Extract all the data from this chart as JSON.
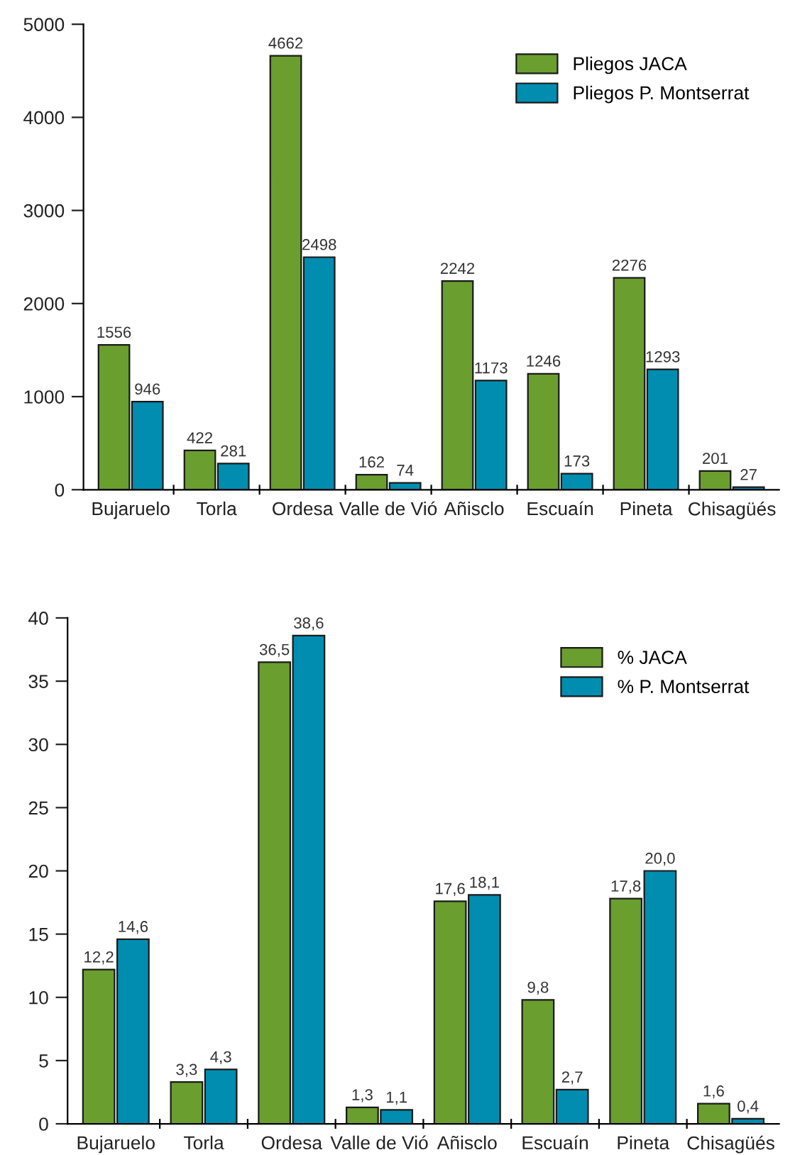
{
  "chart_data": [
    {
      "type": "bar",
      "categories": [
        "Bujaruelo",
        "Torla",
        "Ordesa",
        "Valle de Vió",
        "Añisclo",
        "Escuaín",
        "Pineta",
        "Chisagüés"
      ],
      "series": [
        {
          "name": "Pliegos JACA",
          "color": "#6a9e2e",
          "values": [
            1556,
            422,
            4662,
            162,
            2242,
            1246,
            2276,
            201
          ]
        },
        {
          "name": "Pliegos P. Montserrat",
          "color": "#008db0",
          "values": [
            946,
            281,
            2498,
            74,
            1173,
            173,
            1293,
            27
          ]
        }
      ],
      "ylim": [
        0,
        5000
      ],
      "yticks": [
        0,
        1000,
        2000,
        3000,
        4000,
        5000
      ],
      "data_labels": true,
      "legend": "top right",
      "grid": false
    },
    {
      "type": "bar",
      "categories": [
        "Bujaruelo",
        "Torla",
        "Ordesa",
        "Valle de Vió",
        "Añisclo",
        "Escuaín",
        "Pineta",
        "Chisagüés"
      ],
      "series": [
        {
          "name": "% JACA",
          "color": "#6a9e2e",
          "values": [
            12.2,
            3.3,
            36.5,
            1.3,
            17.6,
            9.8,
            17.8,
            1.6
          ],
          "value_labels": [
            "12,2",
            "3,3",
            "36,5",
            "1,3",
            "17,6",
            "9,8",
            "17,8",
            "1,6"
          ]
        },
        {
          "name": "% P. Montserrat",
          "color": "#008db0",
          "values": [
            14.6,
            4.3,
            38.6,
            1.1,
            18.1,
            2.7,
            20.0,
            0.4
          ],
          "value_labels": [
            "14,6",
            "4,3",
            "38,6",
            "1,1",
            "18,1",
            "2,7",
            "20,0",
            "0,4"
          ]
        }
      ],
      "ylim": [
        0,
        40
      ],
      "yticks": [
        0,
        5,
        10,
        15,
        20,
        25,
        30,
        35,
        40
      ],
      "legend": "top right",
      "grid": false
    }
  ]
}
